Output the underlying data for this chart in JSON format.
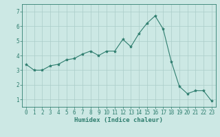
{
  "x": [
    0,
    1,
    2,
    3,
    4,
    5,
    6,
    7,
    8,
    9,
    10,
    11,
    12,
    13,
    14,
    15,
    16,
    17,
    18,
    19,
    20,
    21,
    22,
    23
  ],
  "y": [
    3.4,
    3.0,
    3.0,
    3.3,
    3.4,
    3.7,
    3.8,
    4.1,
    4.3,
    4.0,
    4.3,
    4.3,
    5.1,
    4.6,
    5.5,
    6.2,
    6.7,
    5.8,
    3.6,
    1.9,
    1.4,
    1.6,
    1.6,
    0.9
  ],
  "line_color": "#2e7d6e",
  "marker": "*",
  "marker_size": 3,
  "bg_color": "#cce8e4",
  "grid_color": "#aaccc8",
  "xlabel": "Humidex (Indice chaleur)",
  "xlim": [
    -0.5,
    23.5
  ],
  "ylim": [
    0.5,
    7.5
  ],
  "yticks": [
    1,
    2,
    3,
    4,
    5,
    6,
    7
  ],
  "xticks": [
    0,
    1,
    2,
    3,
    4,
    5,
    6,
    7,
    8,
    9,
    10,
    11,
    12,
    13,
    14,
    15,
    16,
    17,
    18,
    19,
    20,
    21,
    22,
    23
  ],
  "xtick_labels": [
    "0",
    "1",
    "2",
    "3",
    "4",
    "5",
    "6",
    "7",
    "8",
    "9",
    "10",
    "11",
    "12",
    "13",
    "14",
    "15",
    "16",
    "17",
    "18",
    "19",
    "20",
    "21",
    "22",
    "23"
  ],
  "line_color2": "#2e7d6e",
  "tick_color": "#2e7d6e",
  "label_fontsize": 6.5,
  "tick_fontsize": 5.5
}
